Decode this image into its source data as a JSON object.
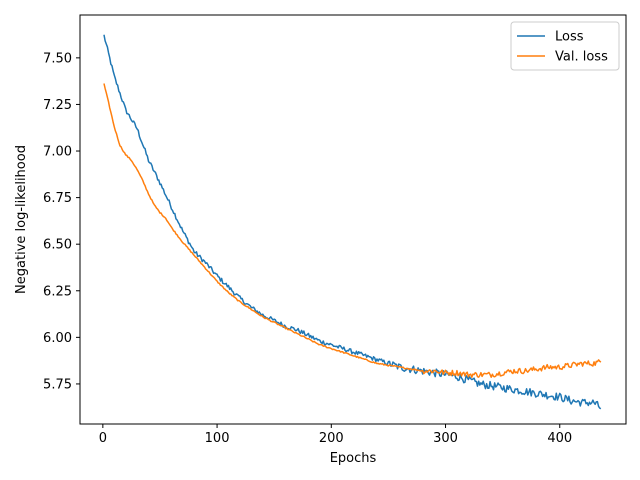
{
  "chart_data": {
    "type": "line",
    "title": "",
    "xlabel": "Epochs",
    "ylabel": "Negative log-likelihood",
    "xlim": [
      -20,
      458
    ],
    "ylim": [
      5.535,
      7.73
    ],
    "x_ticks": [
      0,
      100,
      200,
      300,
      400
    ],
    "y_ticks": [
      5.75,
      6.0,
      6.25,
      6.5,
      6.75,
      7.0,
      7.25,
      7.5
    ],
    "grid": false,
    "legend_position": "top-right",
    "series": [
      {
        "name": "Loss",
        "color": "#1f77b4",
        "x": [
          1,
          10,
          20,
          30,
          40,
          50,
          60,
          70,
          80,
          90,
          100,
          110,
          120,
          130,
          140,
          150,
          160,
          170,
          180,
          190,
          200,
          210,
          220,
          230,
          240,
          250,
          260,
          270,
          280,
          290,
          300,
          310,
          320,
          330,
          340,
          350,
          360,
          370,
          380,
          390,
          400,
          410,
          420,
          430,
          436
        ],
        "y": [
          7.62,
          7.4,
          7.22,
          7.12,
          6.95,
          6.83,
          6.7,
          6.57,
          6.46,
          6.4,
          6.33,
          6.27,
          6.21,
          6.16,
          6.12,
          6.09,
          6.06,
          6.04,
          6.01,
          5.98,
          5.96,
          5.94,
          5.92,
          5.9,
          5.88,
          5.86,
          5.84,
          5.83,
          5.82,
          5.81,
          5.8,
          5.79,
          5.77,
          5.75,
          5.74,
          5.73,
          5.72,
          5.71,
          5.7,
          5.69,
          5.68,
          5.66,
          5.65,
          5.65,
          5.62
        ],
        "noise": 0.012
      },
      {
        "name": "Val. loss",
        "color": "#ff7f0e",
        "x": [
          1,
          5,
          10,
          15,
          20,
          25,
          30,
          35,
          40,
          45,
          50,
          55,
          60,
          70,
          80,
          90,
          100,
          110,
          120,
          130,
          140,
          150,
          160,
          170,
          180,
          190,
          200,
          210,
          220,
          230,
          240,
          250,
          260,
          270,
          280,
          290,
          300,
          310,
          320,
          330,
          340,
          350,
          360,
          370,
          380,
          390,
          400,
          410,
          420,
          430,
          436
        ],
        "y": [
          7.36,
          7.26,
          7.13,
          7.03,
          6.98,
          6.95,
          6.9,
          6.84,
          6.77,
          6.71,
          6.67,
          6.64,
          6.59,
          6.51,
          6.44,
          6.37,
          6.3,
          6.24,
          6.19,
          6.15,
          6.11,
          6.08,
          6.05,
          6.02,
          5.99,
          5.96,
          5.94,
          5.92,
          5.9,
          5.88,
          5.86,
          5.85,
          5.84,
          5.83,
          5.82,
          5.82,
          5.81,
          5.81,
          5.8,
          5.8,
          5.8,
          5.81,
          5.82,
          5.82,
          5.83,
          5.84,
          5.84,
          5.85,
          5.86,
          5.86,
          5.87
        ],
        "noise": 0.006
      }
    ]
  }
}
